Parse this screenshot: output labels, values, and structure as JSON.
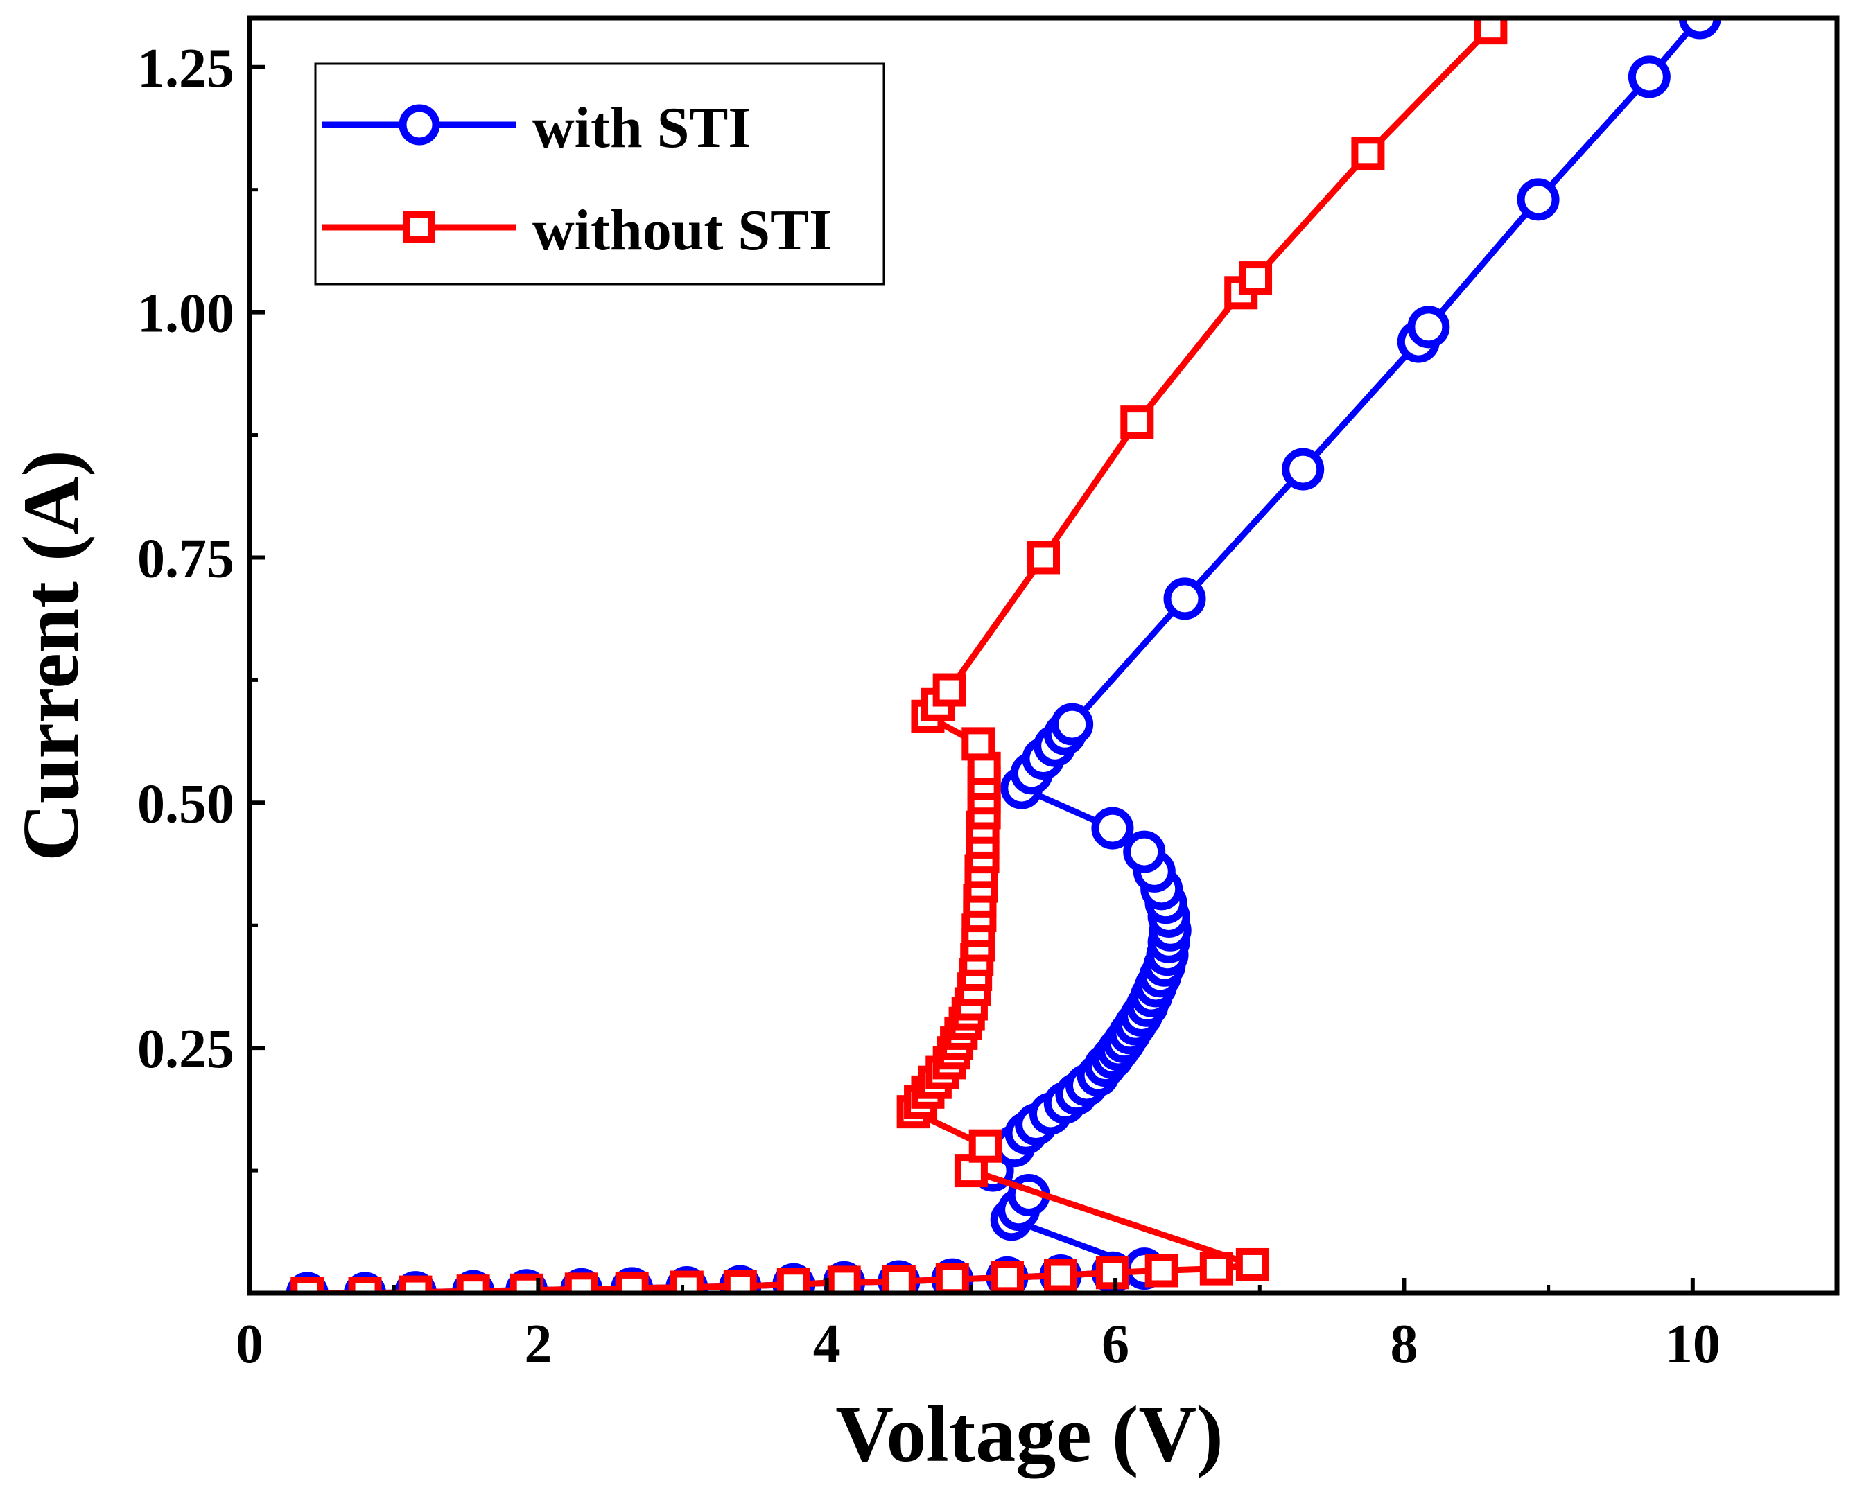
{
  "chart_data": {
    "type": "line",
    "title": "",
    "xlabel": "Voltage (V)",
    "ylabel": "Current (A)",
    "xlim": [
      0,
      11
    ],
    "ylim": [
      0,
      1.3
    ],
    "xticks": [
      0,
      2,
      4,
      6,
      8,
      10
    ],
    "xtick_labels": [
      "0",
      "2",
      "4",
      "6",
      "8",
      "10"
    ],
    "yticks": [
      0.25,
      0.5,
      0.75,
      1.0,
      1.25
    ],
    "ytick_labels": [
      "0.25",
      "0.50",
      "0.75",
      "1.00",
      "1.25"
    ],
    "grid": false,
    "legend_position": "top-left",
    "series": [
      {
        "name": "with STI",
        "color": "#0000ff",
        "marker": "circle",
        "points": [
          [
            0.4,
            0.0
          ],
          [
            0.8,
            0.0
          ],
          [
            1.15,
            0.001
          ],
          [
            1.55,
            0.002
          ],
          [
            1.92,
            0.003
          ],
          [
            2.3,
            0.004
          ],
          [
            2.65,
            0.005
          ],
          [
            3.03,
            0.006
          ],
          [
            3.4,
            0.007
          ],
          [
            3.77,
            0.009
          ],
          [
            4.12,
            0.011
          ],
          [
            4.5,
            0.012
          ],
          [
            4.87,
            0.014
          ],
          [
            5.25,
            0.016
          ],
          [
            5.62,
            0.018
          ],
          [
            5.98,
            0.021
          ],
          [
            6.2,
            0.025
          ],
          [
            5.28,
            0.075
          ],
          [
            5.33,
            0.085
          ],
          [
            5.4,
            0.1
          ],
          [
            5.15,
            0.125
          ],
          [
            5.3,
            0.15
          ],
          [
            5.38,
            0.163
          ],
          [
            5.45,
            0.172
          ],
          [
            5.55,
            0.183
          ],
          [
            5.65,
            0.194
          ],
          [
            5.73,
            0.203
          ],
          [
            5.8,
            0.212
          ],
          [
            5.88,
            0.222
          ],
          [
            5.93,
            0.232
          ],
          [
            5.98,
            0.24
          ],
          [
            6.02,
            0.248
          ],
          [
            6.06,
            0.256
          ],
          [
            6.1,
            0.265
          ],
          [
            6.14,
            0.274
          ],
          [
            6.18,
            0.283
          ],
          [
            6.22,
            0.293
          ],
          [
            6.25,
            0.303
          ],
          [
            6.28,
            0.313
          ],
          [
            6.31,
            0.323
          ],
          [
            6.34,
            0.334
          ],
          [
            6.36,
            0.345
          ],
          [
            6.37,
            0.358
          ],
          [
            6.38,
            0.37
          ],
          [
            6.37,
            0.384
          ],
          [
            6.35,
            0.398
          ],
          [
            6.32,
            0.412
          ],
          [
            6.27,
            0.43
          ],
          [
            6.2,
            0.45
          ],
          [
            5.98,
            0.474
          ],
          [
            5.35,
            0.515
          ],
          [
            5.42,
            0.53
          ],
          [
            5.5,
            0.545
          ],
          [
            5.58,
            0.558
          ],
          [
            5.65,
            0.57
          ],
          [
            5.7,
            0.58
          ],
          [
            6.48,
            0.708
          ],
          [
            7.3,
            0.84
          ],
          [
            8.1,
            0.97
          ],
          [
            8.17,
            0.985
          ],
          [
            8.93,
            1.115
          ],
          [
            9.7,
            1.24
          ],
          [
            10.05,
            1.3
          ]
        ]
      },
      {
        "name": "without STI",
        "color": "#ff0000",
        "marker": "square",
        "points": [
          [
            0.4,
            0.0
          ],
          [
            0.8,
            0.0
          ],
          [
            1.15,
            0.001
          ],
          [
            1.55,
            0.002
          ],
          [
            1.92,
            0.003
          ],
          [
            2.3,
            0.004
          ],
          [
            2.65,
            0.005
          ],
          [
            3.03,
            0.006
          ],
          [
            3.4,
            0.007
          ],
          [
            3.77,
            0.009
          ],
          [
            4.12,
            0.011
          ],
          [
            4.5,
            0.012
          ],
          [
            4.87,
            0.014
          ],
          [
            5.25,
            0.016
          ],
          [
            5.62,
            0.018
          ],
          [
            5.98,
            0.021
          ],
          [
            6.32,
            0.023
          ],
          [
            6.7,
            0.025
          ],
          [
            6.95,
            0.029
          ],
          [
            5.0,
            0.125
          ],
          [
            5.1,
            0.15
          ],
          [
            4.6,
            0.185
          ],
          [
            4.65,
            0.195
          ],
          [
            4.7,
            0.205
          ],
          [
            4.75,
            0.215
          ],
          [
            4.8,
            0.225
          ],
          [
            4.85,
            0.235
          ],
          [
            4.88,
            0.245
          ],
          [
            4.9,
            0.255
          ],
          [
            4.93,
            0.265
          ],
          [
            4.96,
            0.275
          ],
          [
            4.98,
            0.285
          ],
          [
            5.0,
            0.295
          ],
          [
            5.02,
            0.31
          ],
          [
            5.03,
            0.325
          ],
          [
            5.04,
            0.34
          ],
          [
            5.05,
            0.355
          ],
          [
            5.05,
            0.37
          ],
          [
            5.06,
            0.385
          ],
          [
            5.06,
            0.4
          ],
          [
            5.07,
            0.415
          ],
          [
            5.07,
            0.43
          ],
          [
            5.08,
            0.445
          ],
          [
            5.08,
            0.46
          ],
          [
            5.08,
            0.475
          ],
          [
            5.09,
            0.49
          ],
          [
            5.09,
            0.505
          ],
          [
            5.09,
            0.52
          ],
          [
            5.09,
            0.535
          ],
          [
            5.05,
            0.56
          ],
          [
            4.7,
            0.588
          ],
          [
            4.77,
            0.6
          ],
          [
            4.85,
            0.615
          ],
          [
            5.5,
            0.75
          ],
          [
            6.15,
            0.888
          ],
          [
            6.87,
            1.02
          ],
          [
            6.97,
            1.035
          ],
          [
            7.75,
            1.162
          ],
          [
            8.6,
            1.29
          ]
        ]
      }
    ]
  }
}
